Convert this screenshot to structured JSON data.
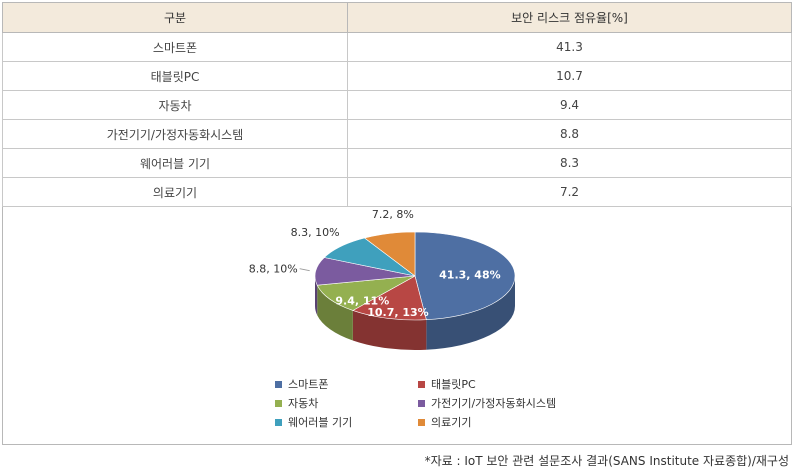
{
  "table": {
    "header": [
      "구분",
      "보안 리스크 점유율[%]"
    ],
    "rows": [
      {
        "label": "스마트폰",
        "value": "41.3"
      },
      {
        "label": "태블릿PC",
        "value": "10.7"
      },
      {
        "label": "자동차",
        "value": "9.4"
      },
      {
        "label": "가전기기/가정자동화시스템",
        "value": "8.8"
      },
      {
        "label": "웨어러블 기기",
        "value": "8.3"
      },
      {
        "label": "의료기기",
        "value": "7.2"
      }
    ]
  },
  "chart_data": {
    "type": "pie",
    "title": "",
    "slices": [
      {
        "name": "스마트폰",
        "value": 41.3,
        "label": "41.3, 48%",
        "color": "#4e6fa3"
      },
      {
        "name": "태블릿PC",
        "value": 10.7,
        "label": "10.7, 13%",
        "color": "#b84744"
      },
      {
        "name": "자동차",
        "value": 9.4,
        "label": "9.4, 11%",
        "color": "#94b050"
      },
      {
        "name": "가전기기/가정자동화시스템",
        "value": 8.8,
        "label": "8.8, 10%",
        "color": "#7b5b9f"
      },
      {
        "name": "웨어러블 기기",
        "value": 8.3,
        "label": "8.3, 10%",
        "color": "#3fa0bd"
      },
      {
        "name": "의료기기",
        "value": 7.2,
        "label": "7.2, 8%",
        "color": "#e08a38"
      }
    ],
    "legend_position": "bottom"
  },
  "source": "*자료 : IoT 보안 관련 설문조사 결과(SANS Institute 자료종합)/재구성"
}
